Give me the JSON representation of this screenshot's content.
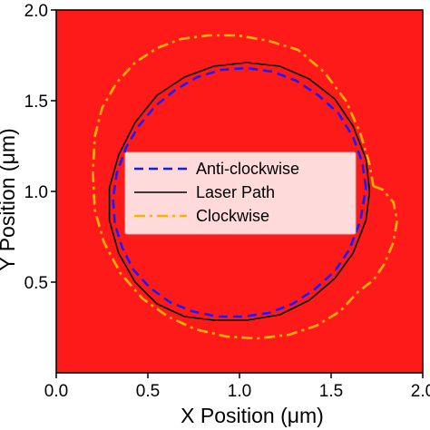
{
  "chart_data": {
    "type": "line",
    "xlabel": "X Position (μm)",
    "ylabel": "Y Position (μm)",
    "xlim": [
      0.0,
      2.0
    ],
    "ylim": [
      0.0,
      2.0
    ],
    "grid": false,
    "background_color": "#ff1a1a",
    "x_ticks": [
      "0.0",
      "0.5",
      "1.0",
      "1.5",
      "2.0"
    ],
    "y_ticks": [
      "0.5",
      "1.0",
      "1.5",
      "2.0"
    ],
    "legend": {
      "placement": "center"
    },
    "series": [
      {
        "name": "Anti-clockwise",
        "style": "dashed",
        "color": "#1a1aff",
        "x": [
          1.69,
          1.67,
          1.62,
          1.54,
          1.43,
          1.31,
          1.18,
          1.04,
          0.9,
          0.77,
          0.65,
          0.54,
          0.45,
          0.38,
          0.33,
          0.31,
          0.32,
          0.36,
          0.42,
          0.51,
          0.62,
          0.74,
          0.88,
          1.02,
          1.16,
          1.29,
          1.41,
          1.52,
          1.6,
          1.66,
          1.69
        ],
        "y": [
          1.02,
          1.16,
          1.3,
          1.43,
          1.53,
          1.61,
          1.66,
          1.68,
          1.67,
          1.63,
          1.56,
          1.47,
          1.36,
          1.24,
          1.1,
          0.96,
          0.82,
          0.69,
          0.57,
          0.47,
          0.39,
          0.34,
          0.31,
          0.31,
          0.33,
          0.38,
          0.46,
          0.56,
          0.68,
          0.84,
          1.02
        ]
      },
      {
        "name": "Laser Path",
        "style": "solid",
        "color": "#000000",
        "x": [
          1.71,
          1.69,
          1.62,
          1.52,
          1.38,
          1.22,
          1.04,
          0.86,
          0.7,
          0.55,
          0.43,
          0.34,
          0.29,
          0.29,
          0.34,
          0.43,
          0.55,
          0.7,
          0.86,
          1.04,
          1.22,
          1.38,
          1.52,
          1.62,
          1.69,
          1.71
        ],
        "y": [
          1.0,
          1.18,
          1.36,
          1.51,
          1.62,
          1.69,
          1.71,
          1.69,
          1.63,
          1.53,
          1.38,
          1.2,
          1.02,
          0.84,
          0.66,
          0.5,
          0.38,
          0.31,
          0.29,
          0.29,
          0.32,
          0.4,
          0.52,
          0.66,
          0.84,
          1.0
        ]
      },
      {
        "name": "Clockwise",
        "style": "dashdot",
        "color": "#ffb000",
        "x": [
          1.73,
          1.78,
          1.84,
          1.86,
          1.84,
          1.79,
          1.73,
          1.65,
          1.55,
          1.42,
          1.27,
          1.1,
          0.93,
          0.76,
          0.61,
          0.47,
          0.35,
          0.26,
          0.21,
          0.2,
          0.21,
          0.25,
          0.33,
          0.43,
          0.55,
          0.68,
          0.83,
          0.99,
          1.16,
          1.32,
          1.46,
          1.58,
          1.66,
          1.71,
          1.73
        ],
        "y": [
          1.03,
          1.01,
          0.94,
          0.84,
          0.72,
          0.6,
          0.51,
          0.45,
          0.34,
          0.26,
          0.21,
          0.19,
          0.2,
          0.24,
          0.31,
          0.41,
          0.55,
          0.72,
          0.9,
          1.1,
          1.3,
          1.46,
          1.6,
          1.71,
          1.79,
          1.84,
          1.86,
          1.86,
          1.83,
          1.78,
          1.66,
          1.5,
          1.32,
          1.15,
          1.03
        ]
      }
    ]
  }
}
